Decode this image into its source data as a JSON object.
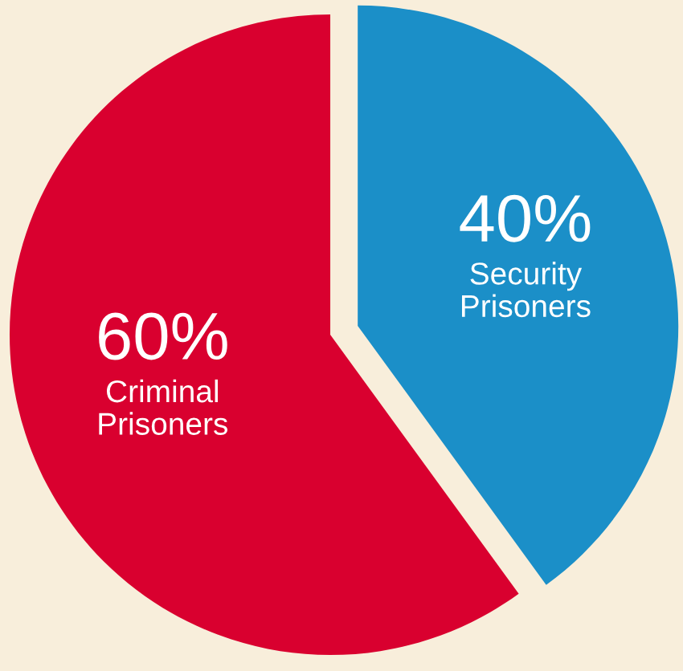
{
  "chart_data": {
    "type": "pie",
    "categories": [
      "Security\nPrisoners",
      "Criminal\nPrisoners"
    ],
    "values": [
      40,
      60
    ],
    "value_labels": [
      "40%",
      "60%"
    ],
    "colors": [
      "#1b8fc8",
      "#d9002f"
    ]
  }
}
